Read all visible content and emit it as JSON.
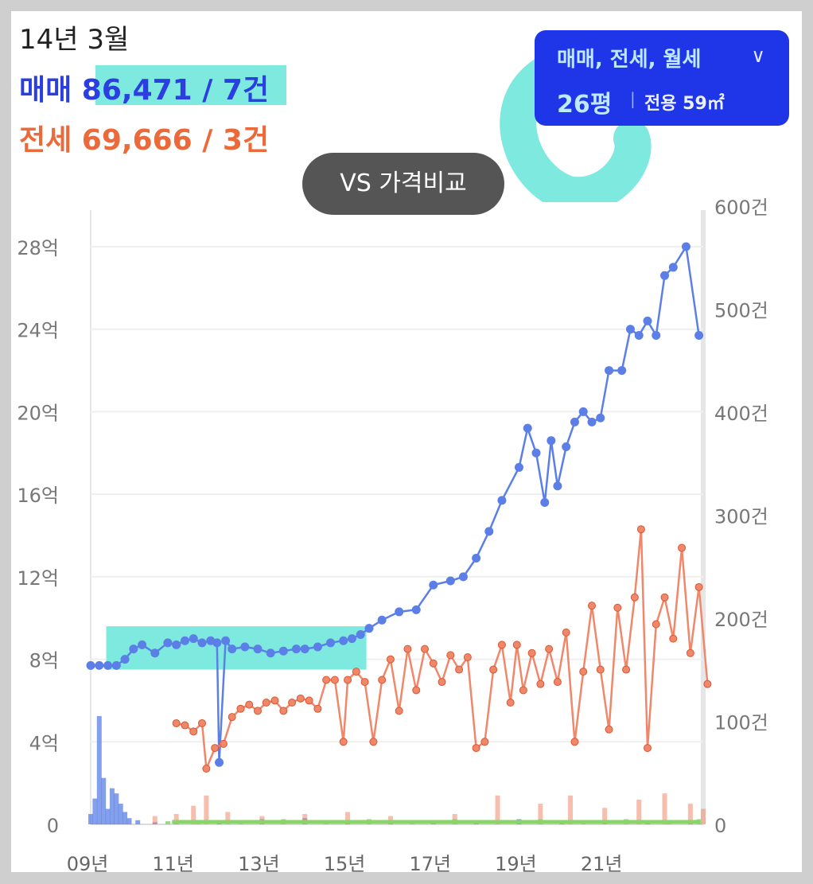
{
  "header": {
    "period": "14년 3월",
    "sale_label": "매매",
    "sale_value": "86,471 / 7건",
    "jeonse_label": "전세",
    "jeonse_value": "69,666 / 3건"
  },
  "filter": {
    "types": "매매, 전세, 월세",
    "size_main": "26평",
    "separator": "|",
    "size_sub": "전용 59㎡"
  },
  "compare_button": {
    "label": "VS 가격비교"
  },
  "colors": {
    "sale": "#5b7fe6",
    "jeonse": "#f0876a",
    "rent_volume": "#8bd46a",
    "highlight": "#7ee9df",
    "filter_bg": "#1f35e8"
  },
  "chart_data": {
    "type": "line",
    "x_ticks": [
      "09년",
      "11년",
      "13년",
      "15년",
      "17년",
      "19년",
      "21년"
    ],
    "y_left_ticks": [
      "0",
      "4억",
      "8억",
      "12억",
      "16억",
      "20억",
      "24억",
      "28억"
    ],
    "y_right_ticks": [
      "0",
      "100건",
      "200건",
      "300건",
      "400건",
      "500건",
      "600건"
    ],
    "x_range": [
      2009.0,
      2023.3
    ],
    "y_left_range": [
      0,
      29.5
    ],
    "y_right_range": [
      0,
      600
    ],
    "grid": true,
    "highlight_period": [
      2009.4,
      2015.4
    ],
    "series": [
      {
        "name": "매매",
        "unit": "억",
        "points": [
          [
            2009.0,
            7.7
          ],
          [
            2009.2,
            7.7
          ],
          [
            2009.4,
            7.7
          ],
          [
            2009.6,
            7.7
          ],
          [
            2009.8,
            8.0
          ],
          [
            2010.0,
            8.5
          ],
          [
            2010.2,
            8.7
          ],
          [
            2010.5,
            8.3
          ],
          [
            2010.8,
            8.8
          ],
          [
            2011.0,
            8.7
          ],
          [
            2011.2,
            8.9
          ],
          [
            2011.4,
            9.0
          ],
          [
            2011.6,
            8.8
          ],
          [
            2011.8,
            8.9
          ],
          [
            2011.95,
            8.8
          ],
          [
            2012.0,
            3.0
          ],
          [
            2012.15,
            8.9
          ],
          [
            2012.3,
            8.5
          ],
          [
            2012.6,
            8.6
          ],
          [
            2012.9,
            8.5
          ],
          [
            2013.2,
            8.3
          ],
          [
            2013.5,
            8.4
          ],
          [
            2013.8,
            8.5
          ],
          [
            2014.0,
            8.5
          ],
          [
            2014.3,
            8.6
          ],
          [
            2014.6,
            8.8
          ],
          [
            2014.9,
            8.9
          ],
          [
            2015.1,
            9.0
          ],
          [
            2015.3,
            9.2
          ],
          [
            2015.5,
            9.5
          ],
          [
            2015.8,
            9.9
          ],
          [
            2016.2,
            10.3
          ],
          [
            2016.6,
            10.4
          ],
          [
            2017.0,
            11.6
          ],
          [
            2017.4,
            11.8
          ],
          [
            2017.7,
            12.0
          ],
          [
            2018.0,
            12.9
          ],
          [
            2018.3,
            14.2
          ],
          [
            2018.6,
            15.7
          ],
          [
            2019.0,
            17.3
          ],
          [
            2019.2,
            19.2
          ],
          [
            2019.4,
            18.0
          ],
          [
            2019.6,
            15.6
          ],
          [
            2019.75,
            18.6
          ],
          [
            2019.9,
            16.4
          ],
          [
            2020.1,
            18.3
          ],
          [
            2020.3,
            19.5
          ],
          [
            2020.5,
            20.0
          ],
          [
            2020.7,
            19.5
          ],
          [
            2020.9,
            19.7
          ],
          [
            2021.1,
            22.0
          ],
          [
            2021.4,
            22.0
          ],
          [
            2021.6,
            24.0
          ],
          [
            2021.8,
            23.7
          ],
          [
            2022.0,
            24.4
          ],
          [
            2022.2,
            23.7
          ],
          [
            2022.4,
            26.6
          ],
          [
            2022.6,
            27.0
          ],
          [
            2022.9,
            28.0
          ],
          [
            2023.2,
            23.7
          ]
        ]
      },
      {
        "name": "전세",
        "unit": "억",
        "points": [
          [
            2011.0,
            4.9
          ],
          [
            2011.2,
            4.8
          ],
          [
            2011.4,
            4.5
          ],
          [
            2011.6,
            4.9
          ],
          [
            2011.7,
            2.7
          ],
          [
            2011.9,
            3.7
          ],
          [
            2012.1,
            3.9
          ],
          [
            2012.3,
            5.2
          ],
          [
            2012.5,
            5.6
          ],
          [
            2012.7,
            5.8
          ],
          [
            2012.9,
            5.5
          ],
          [
            2013.1,
            5.9
          ],
          [
            2013.3,
            6.0
          ],
          [
            2013.5,
            5.5
          ],
          [
            2013.7,
            5.9
          ],
          [
            2013.9,
            6.1
          ],
          [
            2014.1,
            6.0
          ],
          [
            2014.3,
            5.6
          ],
          [
            2014.5,
            7.0
          ],
          [
            2014.7,
            7.0
          ],
          [
            2014.9,
            4.0
          ],
          [
            2015.0,
            7.0
          ],
          [
            2015.2,
            7.4
          ],
          [
            2015.4,
            6.9
          ],
          [
            2015.6,
            4.0
          ],
          [
            2015.8,
            7.0
          ],
          [
            2016.0,
            8.0
          ],
          [
            2016.2,
            5.5
          ],
          [
            2016.4,
            8.5
          ],
          [
            2016.6,
            6.5
          ],
          [
            2016.8,
            8.5
          ],
          [
            2017.0,
            7.8
          ],
          [
            2017.2,
            6.9
          ],
          [
            2017.4,
            8.2
          ],
          [
            2017.6,
            7.5
          ],
          [
            2017.8,
            8.1
          ],
          [
            2018.0,
            3.7
          ],
          [
            2018.2,
            4.0
          ],
          [
            2018.4,
            7.5
          ],
          [
            2018.6,
            8.7
          ],
          [
            2018.8,
            5.9
          ],
          [
            2018.95,
            8.7
          ],
          [
            2019.1,
            6.5
          ],
          [
            2019.3,
            8.3
          ],
          [
            2019.5,
            6.8
          ],
          [
            2019.7,
            8.5
          ],
          [
            2019.9,
            6.9
          ],
          [
            2020.1,
            9.3
          ],
          [
            2020.3,
            4.0
          ],
          [
            2020.5,
            7.4
          ],
          [
            2020.7,
            10.6
          ],
          [
            2020.9,
            7.5
          ],
          [
            2021.1,
            4.6
          ],
          [
            2021.3,
            10.5
          ],
          [
            2021.5,
            7.5
          ],
          [
            2021.7,
            11.0
          ],
          [
            2021.85,
            14.3
          ],
          [
            2022.0,
            3.7
          ],
          [
            2022.2,
            9.7
          ],
          [
            2022.4,
            11.0
          ],
          [
            2022.6,
            9.0
          ],
          [
            2022.8,
            13.4
          ],
          [
            2023.0,
            8.3
          ],
          [
            2023.2,
            11.5
          ],
          [
            2023.4,
            6.8
          ]
        ]
      }
    ],
    "volume": [
      {
        "name": "매매 거래량",
        "unit": "건",
        "points": [
          [
            2009.0,
            10
          ],
          [
            2009.1,
            25
          ],
          [
            2009.2,
            105
          ],
          [
            2009.3,
            45
          ],
          [
            2009.4,
            15
          ],
          [
            2009.5,
            35
          ],
          [
            2009.6,
            30
          ],
          [
            2009.7,
            20
          ],
          [
            2009.8,
            12
          ],
          [
            2009.9,
            6
          ],
          [
            2010.1,
            4
          ],
          [
            2010.5,
            2
          ],
          [
            2011.0,
            4
          ],
          [
            2012.0,
            3
          ],
          [
            2013.0,
            5
          ],
          [
            2014.0,
            6
          ],
          [
            2015.0,
            4
          ],
          [
            2016.0,
            3
          ],
          [
            2017.0,
            4
          ],
          [
            2018.0,
            3
          ],
          [
            2019.0,
            5
          ],
          [
            2020.0,
            4
          ],
          [
            2021.0,
            3
          ],
          [
            2022.0,
            4
          ],
          [
            2023.0,
            3
          ]
        ]
      },
      {
        "name": "전세 거래량",
        "unit": "건",
        "points": [
          [
            2010.5,
            8
          ],
          [
            2011.0,
            10
          ],
          [
            2011.4,
            18
          ],
          [
            2011.7,
            28
          ],
          [
            2012.2,
            12
          ],
          [
            2013.0,
            8
          ],
          [
            2014.0,
            10
          ],
          [
            2015.0,
            12
          ],
          [
            2016.0,
            8
          ],
          [
            2017.5,
            10
          ],
          [
            2018.5,
            28
          ],
          [
            2019.5,
            20
          ],
          [
            2020.2,
            28
          ],
          [
            2021.0,
            16
          ],
          [
            2021.8,
            24
          ],
          [
            2022.4,
            30
          ],
          [
            2023.0,
            20
          ],
          [
            2023.3,
            15
          ]
        ]
      },
      {
        "name": "월세 거래량",
        "unit": "건",
        "points": [
          [
            2010.8,
            3
          ],
          [
            2011.5,
            4
          ],
          [
            2012.5,
            4
          ],
          [
            2013.5,
            5
          ],
          [
            2014.5,
            4
          ],
          [
            2015.5,
            5
          ],
          [
            2016.5,
            4
          ],
          [
            2017.5,
            5
          ],
          [
            2018.5,
            4
          ],
          [
            2019.5,
            5
          ],
          [
            2020.5,
            4
          ],
          [
            2021.5,
            5
          ],
          [
            2022.5,
            4
          ],
          [
            2023.2,
            5
          ]
        ]
      }
    ]
  }
}
